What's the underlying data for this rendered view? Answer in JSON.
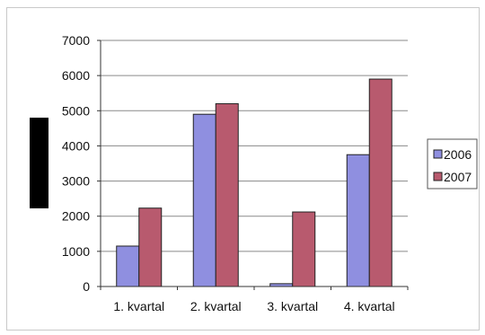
{
  "chart_data": {
    "type": "bar",
    "title": "",
    "xlabel": "",
    "ylabel": "",
    "categories": [
      "1. kvartal",
      "2. kvartal",
      "3. kvartal",
      "4. kvartal"
    ],
    "series": [
      {
        "name": "2006",
        "values": [
          1150,
          4900,
          80,
          3750
        ],
        "color": "#8f8fe0"
      },
      {
        "name": "2007",
        "values": [
          2230,
          5200,
          2120,
          5900
        ],
        "color": "#b85a6e"
      }
    ],
    "ylim": [
      0,
      7000
    ],
    "yticks": [
      0,
      1000,
      2000,
      3000,
      4000,
      5000,
      6000,
      7000
    ],
    "grid": true,
    "legend": "right",
    "redaction_color": "#000000"
  }
}
